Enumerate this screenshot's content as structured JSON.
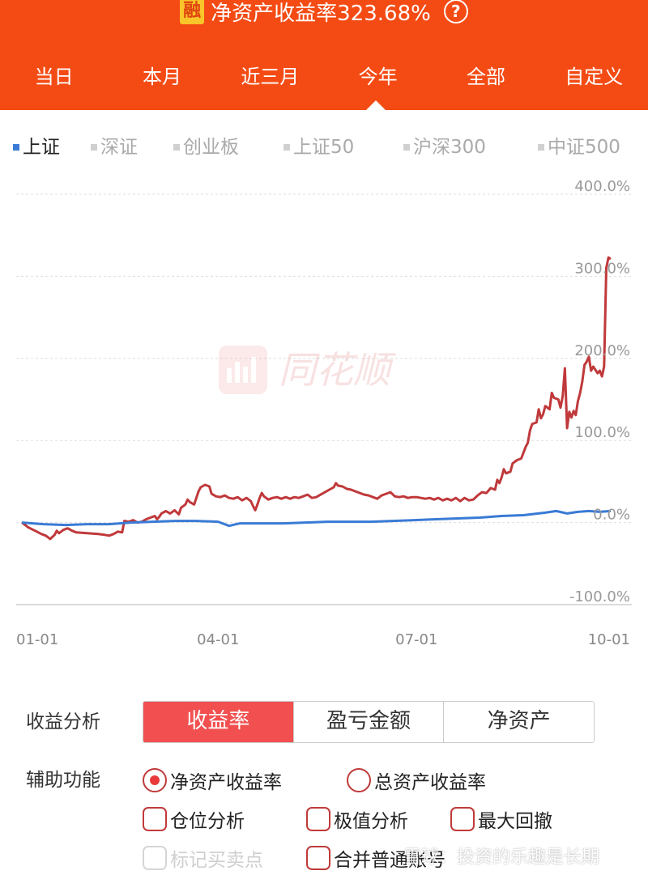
{
  "header": {
    "badge": "融",
    "title": "净资产收益率323.68%",
    "help_icon": "question-circle-icon",
    "bg_color": "#f44b14"
  },
  "period_tabs": [
    "当日",
    "本月",
    "近三月",
    "今年",
    "全部",
    "自定义"
  ],
  "selected_period": "今年",
  "index_tabs": [
    {
      "label": "上证",
      "active": true
    },
    {
      "label": "深证",
      "active": false
    },
    {
      "label": "创业板",
      "active": false
    },
    {
      "label": "上证50",
      "active": false
    },
    {
      "label": "沪深300",
      "active": false
    },
    {
      "label": "中证500",
      "active": false
    }
  ],
  "watermark": {
    "logo_text": "同花顺"
  },
  "chart_data": {
    "type": "line",
    "y_ticks": [
      "400.0%",
      "300.0%",
      "200.0%",
      "100.0%",
      "0.0%",
      "-100.0%"
    ],
    "ylim": [
      -100,
      400
    ],
    "x_ticks": [
      {
        "label": "01-01",
        "day": 0
      },
      {
        "label": "04-01",
        "day": 90
      },
      {
        "label": "07-01",
        "day": 181
      },
      {
        "label": "10-01",
        "day": 273
      }
    ],
    "grid": true,
    "series": [
      {
        "color": "#c0393b",
        "points": [
          [
            0,
            0
          ],
          [
            3,
            -6
          ],
          [
            6,
            -10
          ],
          [
            9,
            -14
          ],
          [
            11,
            -16
          ],
          [
            13,
            -20
          ],
          [
            15,
            -15
          ],
          [
            16,
            -10
          ],
          [
            17,
            -13
          ],
          [
            19,
            -9
          ],
          [
            21,
            -7
          ],
          [
            23,
            -10
          ],
          [
            25,
            -12
          ],
          [
            30,
            -13
          ],
          [
            35,
            -14
          ],
          [
            38,
            -15
          ],
          [
            40,
            -16
          ],
          [
            42,
            -14
          ],
          [
            44,
            -11
          ],
          [
            46,
            -12
          ],
          [
            47,
            2
          ],
          [
            49,
            1
          ],
          [
            51,
            3
          ],
          [
            53,
            0
          ],
          [
            55,
            1
          ],
          [
            57,
            4
          ],
          [
            59,
            6
          ],
          [
            61,
            8
          ],
          [
            62,
            4
          ],
          [
            63,
            7
          ],
          [
            64,
            11
          ],
          [
            66,
            14
          ],
          [
            68,
            11
          ],
          [
            70,
            15
          ],
          [
            72,
            10
          ],
          [
            73,
            18
          ],
          [
            75,
            22
          ],
          [
            76,
            28
          ],
          [
            77,
            25
          ],
          [
            79,
            22
          ],
          [
            80,
            30
          ],
          [
            81,
            38
          ],
          [
            82,
            43
          ],
          [
            84,
            46
          ],
          [
            86,
            44
          ],
          [
            87,
            35
          ],
          [
            89,
            32
          ],
          [
            91,
            31
          ],
          [
            93,
            33
          ],
          [
            95,
            30
          ],
          [
            97,
            29
          ],
          [
            99,
            31
          ],
          [
            101,
            27
          ],
          [
            103,
            30
          ],
          [
            105,
            26
          ],
          [
            106,
            20
          ],
          [
            107,
            15
          ],
          [
            108,
            22
          ],
          [
            109,
            30
          ],
          [
            110,
            36
          ],
          [
            111,
            32
          ],
          [
            113,
            28
          ],
          [
            115,
            30
          ],
          [
            117,
            31
          ],
          [
            119,
            29
          ],
          [
            121,
            31
          ],
          [
            123,
            29
          ],
          [
            125,
            31
          ],
          [
            127,
            30
          ],
          [
            129,
            32
          ],
          [
            131,
            34
          ],
          [
            133,
            30
          ],
          [
            135,
            31
          ],
          [
            137,
            34
          ],
          [
            139,
            37
          ],
          [
            141,
            40
          ],
          [
            143,
            43
          ],
          [
            144,
            48
          ],
          [
            145,
            45
          ],
          [
            147,
            44
          ],
          [
            149,
            41
          ],
          [
            151,
            40
          ],
          [
            153,
            38
          ],
          [
            155,
            36
          ],
          [
            157,
            34
          ],
          [
            159,
            33
          ],
          [
            161,
            31
          ],
          [
            163,
            29
          ],
          [
            165,
            33
          ],
          [
            167,
            35
          ],
          [
            169,
            37
          ],
          [
            171,
            32
          ],
          [
            173,
            31
          ],
          [
            175,
            32
          ],
          [
            177,
            30
          ],
          [
            179,
            31
          ],
          [
            181,
            31
          ],
          [
            183,
            30
          ],
          [
            185,
            29
          ],
          [
            187,
            30
          ],
          [
            189,
            28
          ],
          [
            191,
            30
          ],
          [
            193,
            27
          ],
          [
            195,
            29
          ],
          [
            197,
            27
          ],
          [
            199,
            30
          ],
          [
            201,
            26
          ],
          [
            203,
            30
          ],
          [
            205,
            27
          ],
          [
            207,
            28
          ],
          [
            209,
            33
          ],
          [
            211,
            37
          ],
          [
            213,
            36
          ],
          [
            215,
            42
          ],
          [
            217,
            40
          ],
          [
            218,
            52
          ],
          [
            219,
            48
          ],
          [
            220,
            55
          ],
          [
            221,
            65
          ],
          [
            222,
            60
          ],
          [
            224,
            62
          ],
          [
            225,
            72
          ],
          [
            227,
            76
          ],
          [
            229,
            78
          ],
          [
            231,
            92
          ],
          [
            232,
            97
          ],
          [
            233,
            112
          ],
          [
            234,
            120
          ],
          [
            236,
            122
          ],
          [
            237,
            138
          ],
          [
            238,
            127
          ],
          [
            239,
            132
          ],
          [
            240,
            142
          ],
          [
            242,
            138
          ],
          [
            243,
            158
          ],
          [
            244,
            152
          ],
          [
            246,
            150
          ],
          [
            247,
            140
          ],
          [
            248,
            154
          ],
          [
            249,
            188
          ],
          [
            250,
            115
          ],
          [
            251,
            135
          ],
          [
            252,
            128
          ],
          [
            253,
            136
          ],
          [
            254,
            131
          ],
          [
            255,
            148
          ],
          [
            256,
            158
          ],
          [
            257,
            172
          ],
          [
            258,
            192
          ],
          [
            259,
            196
          ],
          [
            260,
            202
          ],
          [
            261,
            185
          ],
          [
            262,
            190
          ],
          [
            264,
            182
          ],
          [
            265,
            185
          ],
          [
            266,
            178
          ],
          [
            267,
            190
          ],
          [
            268,
            310
          ],
          [
            269,
            323
          ],
          [
            270,
            321
          ]
        ]
      },
      {
        "color": "#3a7bd5",
        "points": [
          [
            0,
            0
          ],
          [
            10,
            -2
          ],
          [
            20,
            -3
          ],
          [
            30,
            -2
          ],
          [
            40,
            -2
          ],
          [
            50,
            0
          ],
          [
            60,
            1
          ],
          [
            70,
            2
          ],
          [
            80,
            2
          ],
          [
            90,
            1
          ],
          [
            95,
            -4
          ],
          [
            100,
            -1
          ],
          [
            110,
            -1
          ],
          [
            120,
            -1
          ],
          [
            130,
            0
          ],
          [
            140,
            1
          ],
          [
            150,
            1
          ],
          [
            160,
            1
          ],
          [
            170,
            2
          ],
          [
            180,
            3
          ],
          [
            190,
            4
          ],
          [
            200,
            5
          ],
          [
            210,
            6
          ],
          [
            220,
            8
          ],
          [
            230,
            9
          ],
          [
            240,
            12
          ],
          [
            245,
            14
          ],
          [
            250,
            11
          ],
          [
            255,
            13
          ],
          [
            260,
            14
          ],
          [
            265,
            13
          ],
          [
            270,
            14
          ]
        ]
      }
    ]
  },
  "analysis": {
    "label": "收益分析",
    "options": [
      "收益率",
      "盈亏金额",
      "净资产"
    ],
    "active": "收益率",
    "active_color": "#f25050"
  },
  "aux": {
    "label": "辅助功能",
    "radios": [
      {
        "label": "净资产收益率",
        "checked": true
      },
      {
        "label": "总资产收益率",
        "checked": false
      }
    ],
    "checkboxes": [
      {
        "label": "仓位分析",
        "checked": false,
        "disabled": false
      },
      {
        "label": "极值分析",
        "checked": false,
        "disabled": false
      },
      {
        "label": "最大回撤",
        "checked": false,
        "disabled": false
      },
      {
        "label": "标记买卖点",
        "checked": false,
        "disabled": true
      },
      {
        "label": "合并普通账号",
        "checked": false,
        "disabled": false
      }
    ]
  },
  "footer_watermark": "雪球：投资的乐趣是长期"
}
